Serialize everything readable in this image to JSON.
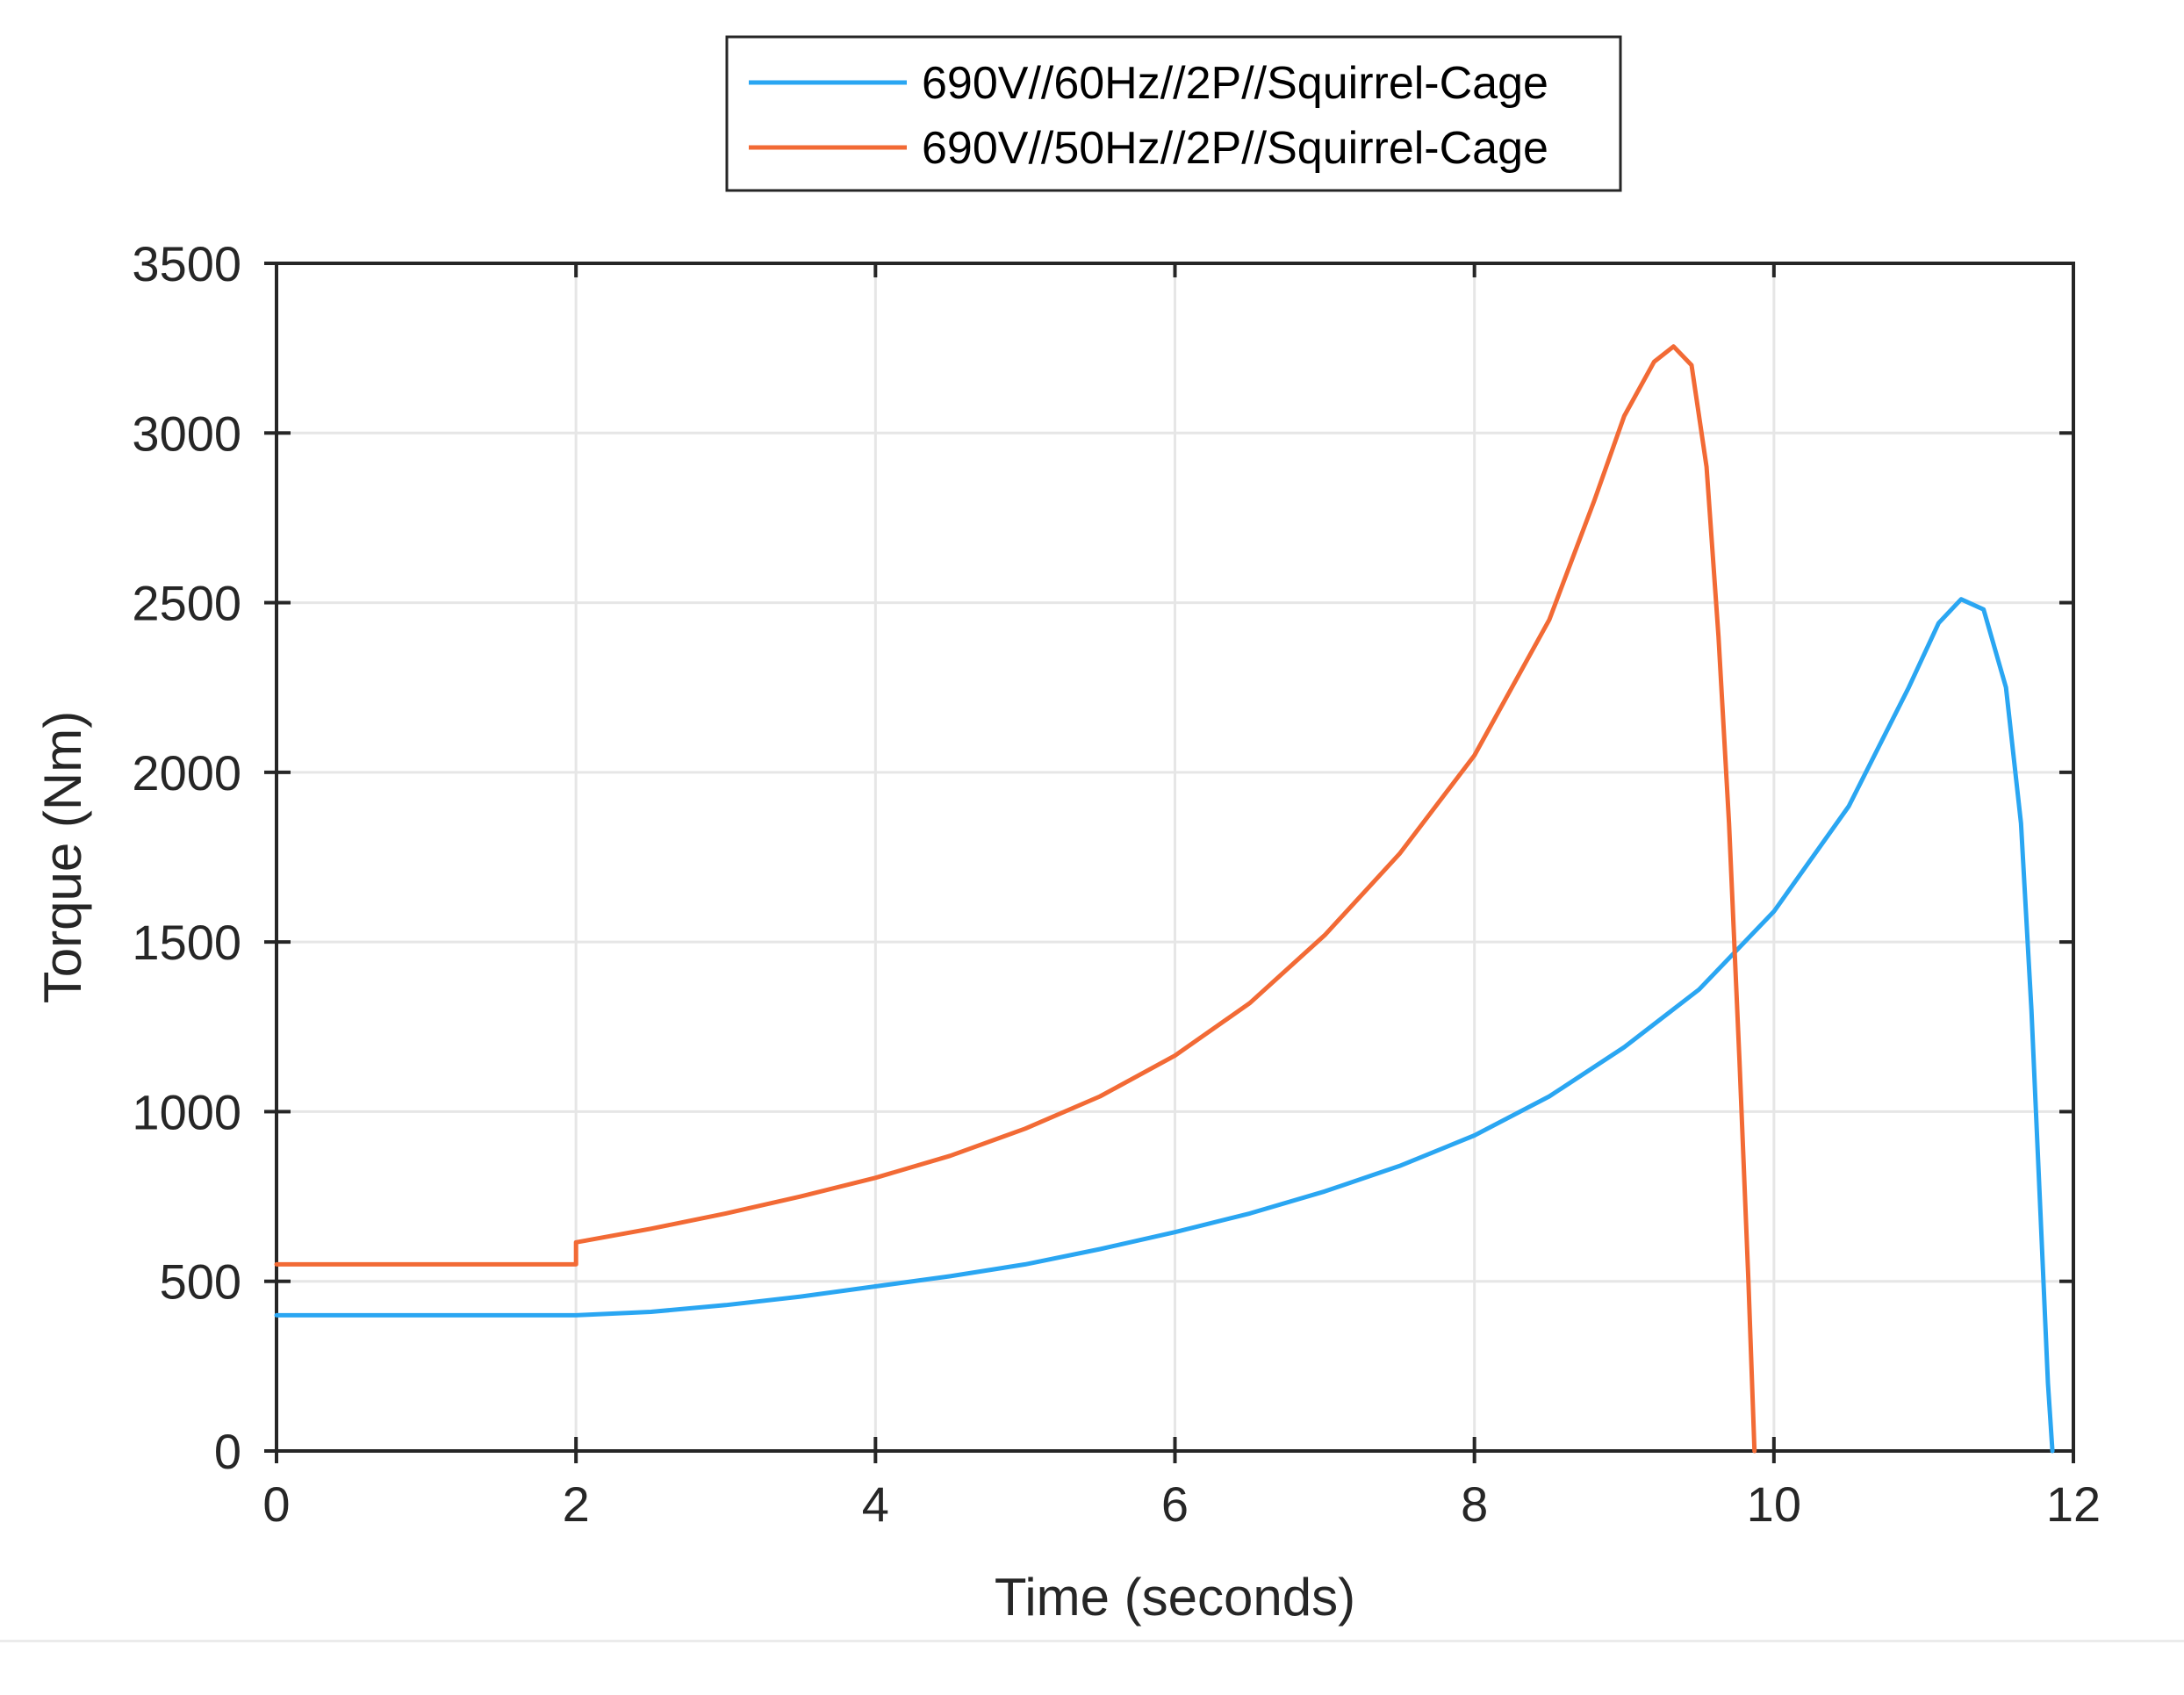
{
  "chart_data": {
    "type": "line",
    "xlabel": "Time (seconds)",
    "ylabel": "Torque (Nm)",
    "xlim": [
      0,
      12
    ],
    "ylim": [
      0,
      3500
    ],
    "xticks": [
      0,
      2,
      4,
      6,
      8,
      10,
      12
    ],
    "yticks": [
      0,
      500,
      1000,
      1500,
      2000,
      2500,
      3000,
      3500
    ],
    "grid": true,
    "legend_position": "top-center, outside plot",
    "series": [
      {
        "name": "690V//60Hz//2P//Squirrel-Cage",
        "color": "#2aa6f2",
        "points": [
          [
            0,
            400
          ],
          [
            2.0,
            400
          ],
          [
            2.5,
            410
          ],
          [
            3.0,
            430
          ],
          [
            3.5,
            455
          ],
          [
            4.0,
            485
          ],
          [
            4.5,
            515
          ],
          [
            5.0,
            550
          ],
          [
            5.5,
            595
          ],
          [
            6.0,
            645
          ],
          [
            6.5,
            700
          ],
          [
            7.0,
            765
          ],
          [
            7.5,
            840
          ],
          [
            8.0,
            930
          ],
          [
            8.5,
            1045
          ],
          [
            9.0,
            1190
          ],
          [
            9.5,
            1360
          ],
          [
            10.0,
            1590
          ],
          [
            10.5,
            1900
          ],
          [
            10.9,
            2250
          ],
          [
            11.1,
            2440
          ],
          [
            11.25,
            2510
          ],
          [
            11.4,
            2480
          ],
          [
            11.55,
            2250
          ],
          [
            11.65,
            1850
          ],
          [
            11.72,
            1300
          ],
          [
            11.78,
            700
          ],
          [
            11.83,
            200
          ],
          [
            11.86,
            0
          ]
        ]
      },
      {
        "name": "690V//50Hz//2P//Squirrel-Cage",
        "color": "#f26a35",
        "points": [
          [
            0,
            550
          ],
          [
            2.0,
            550
          ],
          [
            2.0,
            615
          ],
          [
            2.5,
            655
          ],
          [
            3.0,
            700
          ],
          [
            3.5,
            750
          ],
          [
            4.0,
            805
          ],
          [
            4.5,
            870
          ],
          [
            5.0,
            950
          ],
          [
            5.5,
            1045
          ],
          [
            6.0,
            1165
          ],
          [
            6.5,
            1320
          ],
          [
            7.0,
            1520
          ],
          [
            7.5,
            1760
          ],
          [
            8.0,
            2050
          ],
          [
            8.5,
            2450
          ],
          [
            8.8,
            2800
          ],
          [
            9.0,
            3050
          ],
          [
            9.2,
            3210
          ],
          [
            9.33,
            3255
          ],
          [
            9.45,
            3200
          ],
          [
            9.55,
            2900
          ],
          [
            9.63,
            2400
          ],
          [
            9.7,
            1850
          ],
          [
            9.77,
            1150
          ],
          [
            9.83,
            500
          ],
          [
            9.87,
            0
          ]
        ]
      }
    ]
  }
}
